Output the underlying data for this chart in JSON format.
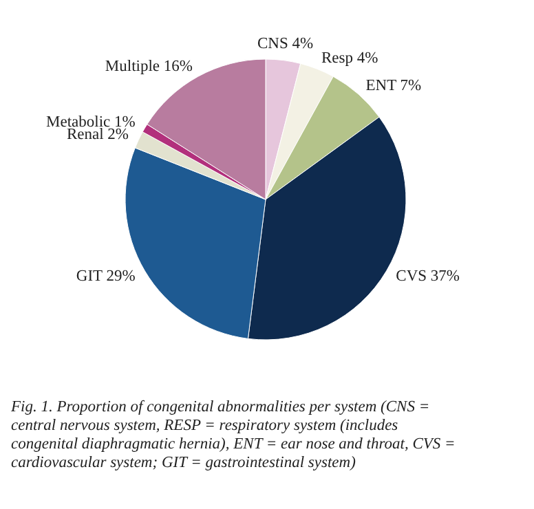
{
  "chart_data": {
    "type": "pie",
    "categories": [
      "CNS",
      "Resp",
      "ENT",
      "CVS",
      "GIT",
      "Renal",
      "Metabolic",
      "Multiple"
    ],
    "values": [
      4,
      4,
      7,
      37,
      29,
      2,
      1,
      16
    ],
    "value_labels": [
      "4%",
      "4%",
      "7%",
      "37%",
      "29%",
      "2%",
      "1%",
      "16%"
    ],
    "colors": [
      "#e6c6dc",
      "#f3f1e4",
      "#b4c38a",
      "#0e2a4e",
      "#1e5a92",
      "#e2e2cf",
      "#b2307c",
      "#b87c9f"
    ],
    "legend": false,
    "annotations": [
      "Fig. 1. Proportion of congenital abnormalities per system (CNS = central nervous system, RESP = respiratory system (includes congenital diaphragmatic hernia), ENT = ear nose and throat, CVS = cardiovascular system; GIT = gastrointestinal system)"
    ]
  }
}
